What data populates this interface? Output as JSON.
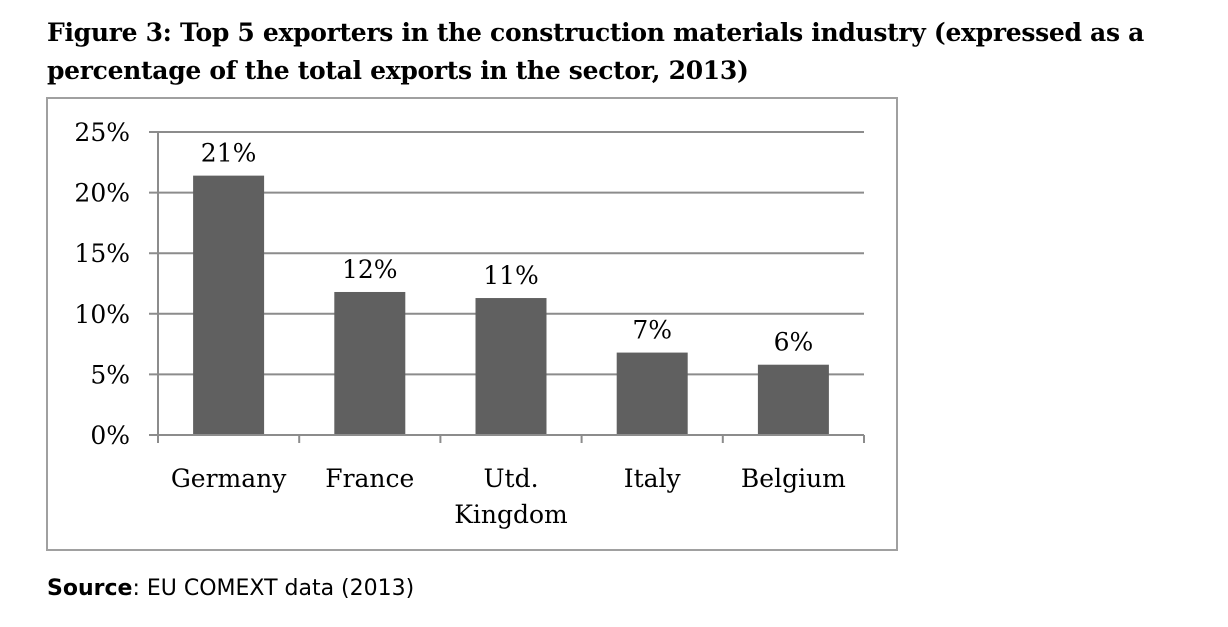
{
  "chart_data": {
    "type": "bar",
    "title": "Figure 3: Top 5 exporters in the construction materials industry (expressed as a percentage of the total exports in the sector, 2013)",
    "categories": [
      [
        "Germany"
      ],
      [
        "France"
      ],
      [
        "Utd.",
        "Kingdom"
      ],
      [
        "Italy"
      ],
      [
        "Belgium"
      ]
    ],
    "values": [
      21.4,
      11.8,
      11.3,
      6.8,
      5.8
    ],
    "data_labels": [
      "21%",
      "12%",
      "11%",
      "7%",
      "6%"
    ],
    "ylim": [
      0,
      25
    ],
    "yticks": [
      "0%",
      "5%",
      "10%",
      "15%",
      "20%",
      "25%"
    ],
    "grid": true,
    "legend": "none",
    "colors": {
      "bar": "#606060",
      "grid": "#8c8c8c"
    },
    "xlabel": "",
    "ylabel": ""
  },
  "source": {
    "label": "Source",
    "text": ": EU COMEXT data (2013)"
  }
}
